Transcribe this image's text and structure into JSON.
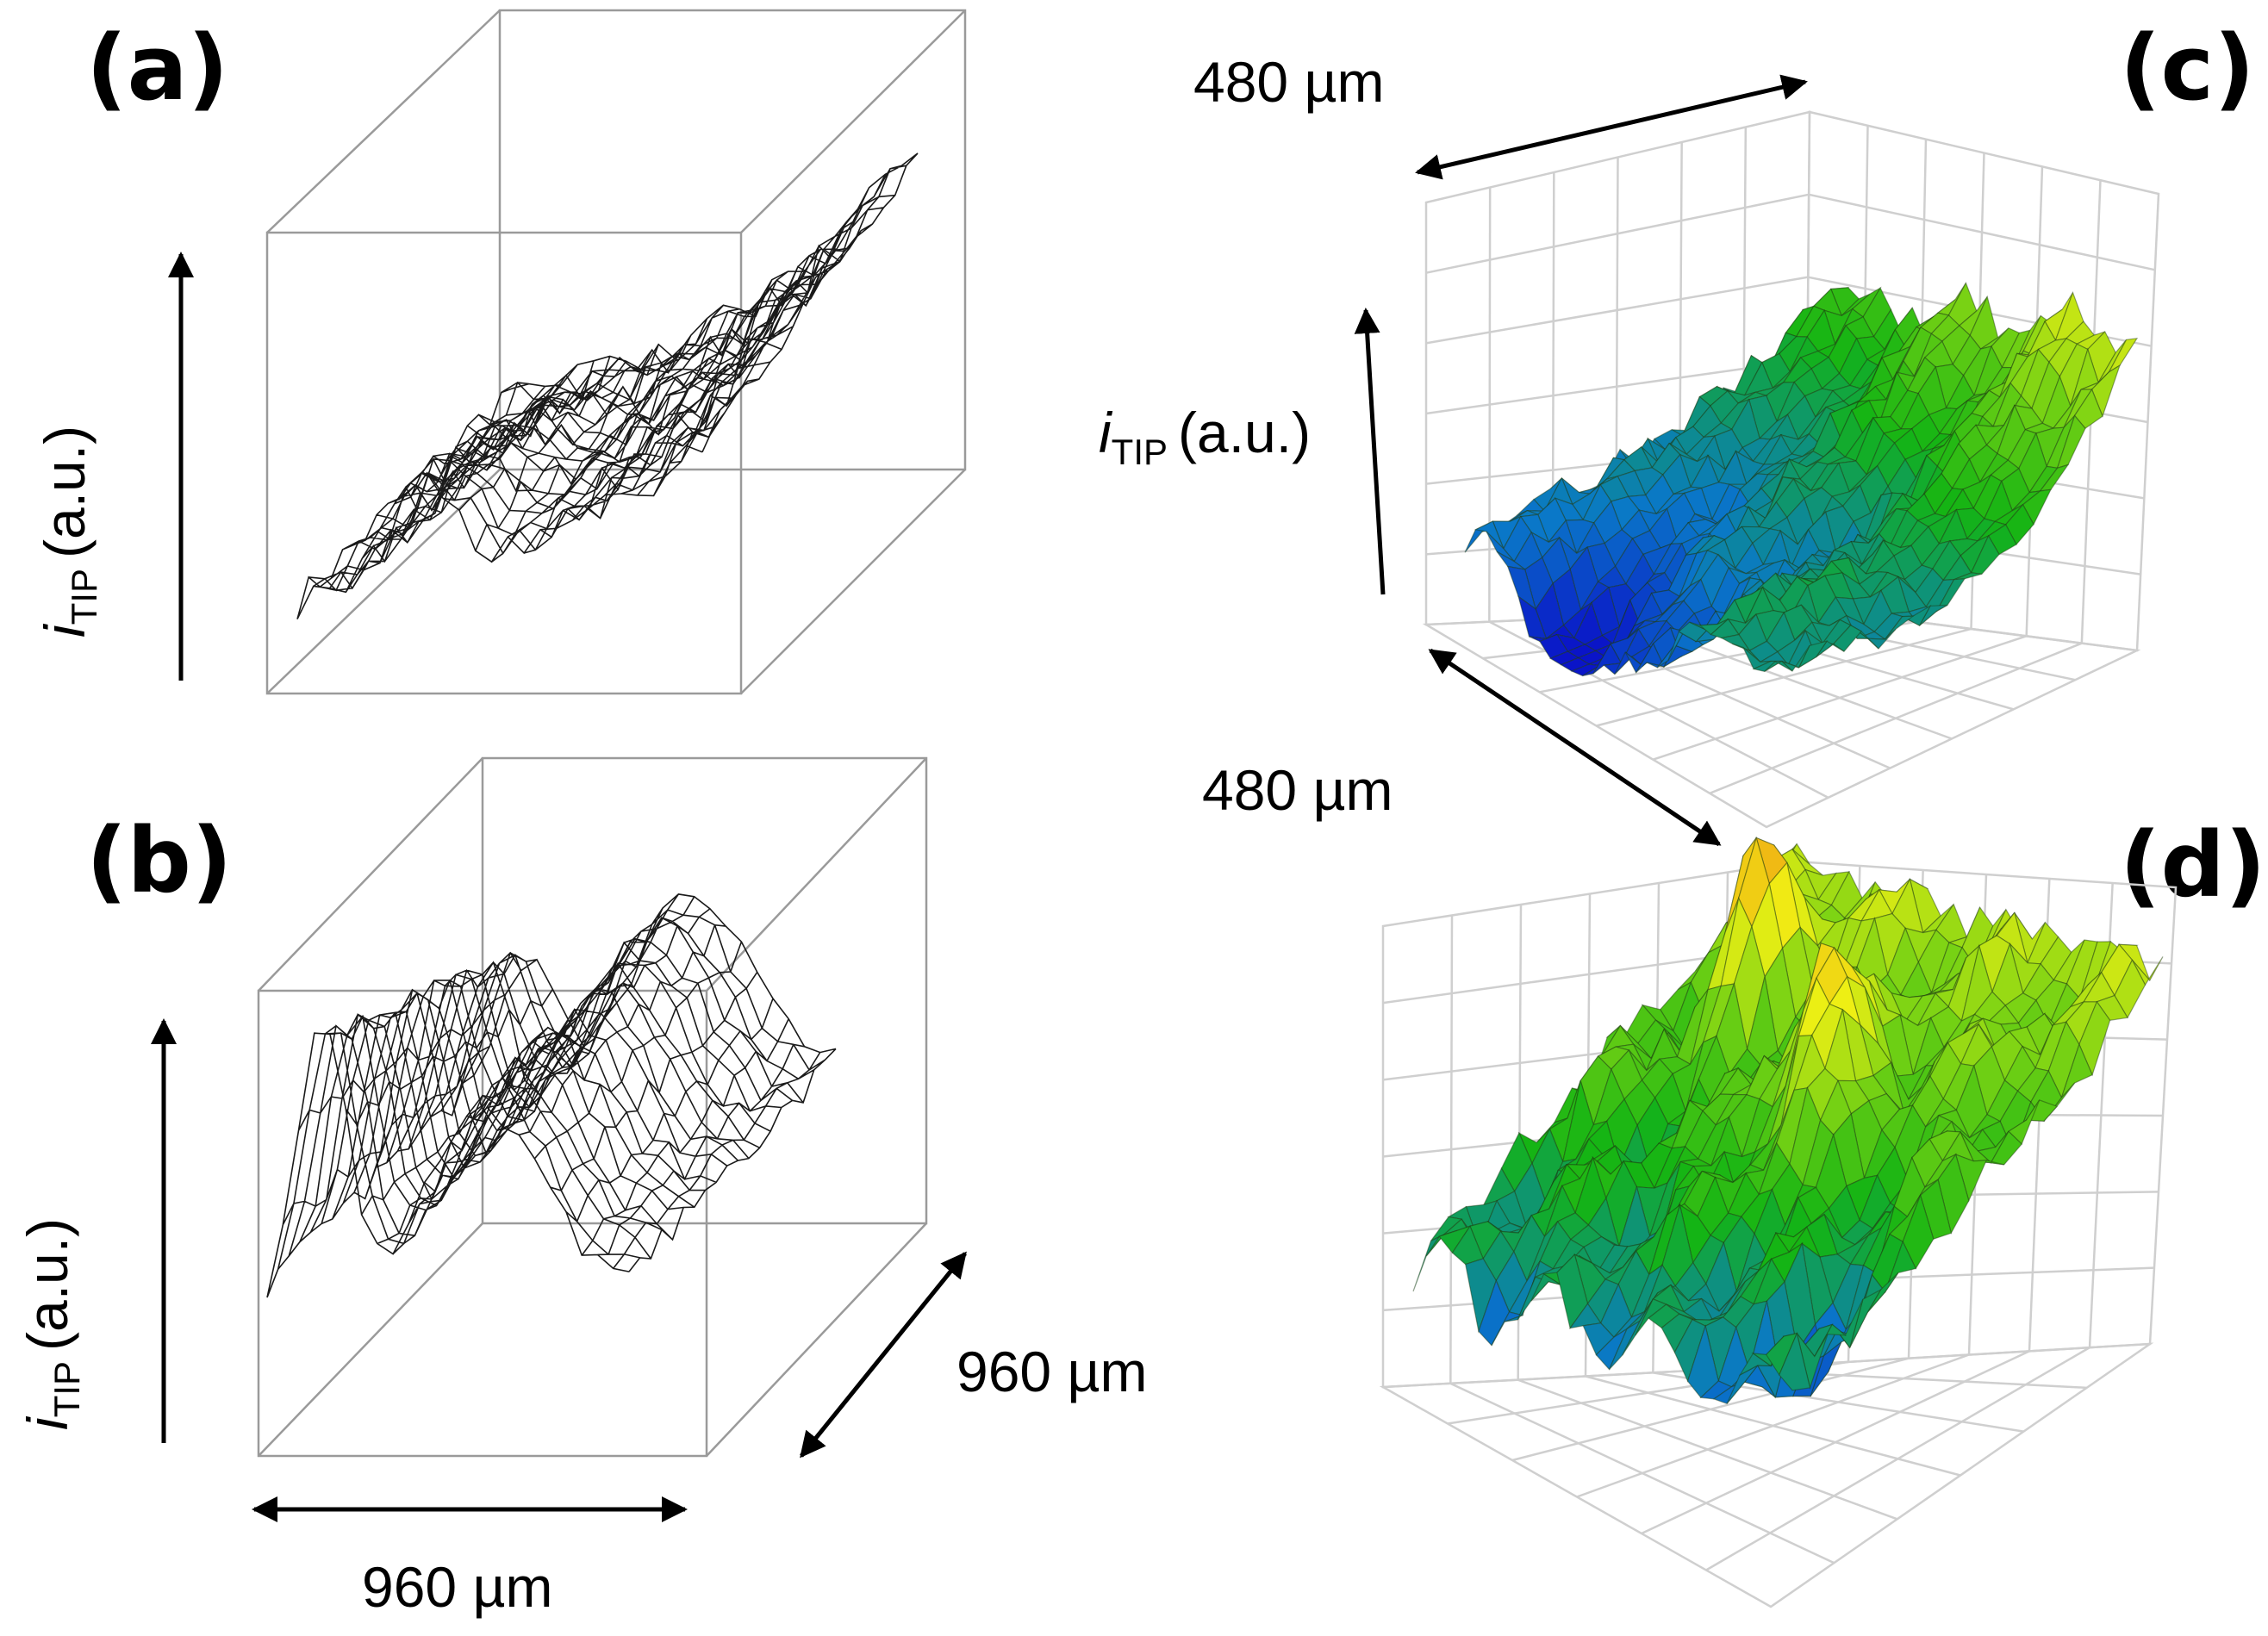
{
  "panels": {
    "a": {
      "label": "(a)",
      "axis_label": {
        "symbol": "i",
        "subscript": "TIP",
        "unit": "(a.u.)"
      },
      "render": "wireframe"
    },
    "b": {
      "label": "(b)",
      "axis_label": {
        "symbol": "i",
        "subscript": "TIP",
        "unit": "(a.u.)"
      },
      "render": "wireframe",
      "dim_x": "960 µm",
      "dim_y": "960 µm"
    },
    "c": {
      "label": "(c)",
      "axis_label": {
        "symbol": "i",
        "subscript": "TIP",
        "unit": "(a.u.)"
      },
      "render": "colored-surface",
      "dim_top": "480 µm",
      "dim_side": "480 µm"
    },
    "d": {
      "label": "(d)",
      "render": "colored-surface"
    }
  },
  "colormap": [
    "#0a14c8",
    "#0a78c8",
    "#14b414",
    "#78d214",
    "#f0f014",
    "#f0a014",
    "#e63214"
  ]
}
